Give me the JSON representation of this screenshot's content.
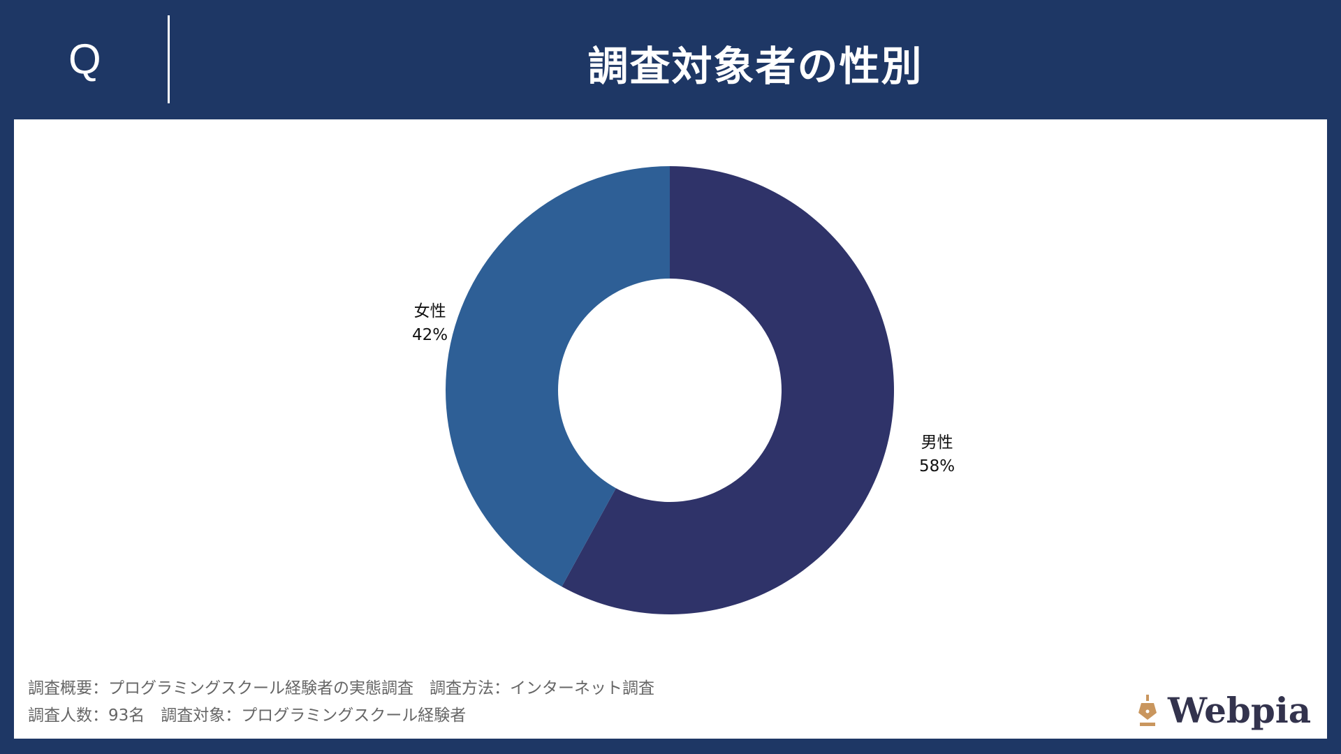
{
  "header": {
    "q_label": "Q",
    "title": "調査対象者の性別"
  },
  "colors": {
    "background": "#1e3765",
    "male": "#2f3369",
    "female": "#2e5f96"
  },
  "chart_data": {
    "type": "pie",
    "subtype": "donut",
    "title": "調査対象者の性別",
    "categories": [
      "男性",
      "女性"
    ],
    "values": [
      58,
      42
    ],
    "labels": [
      "58%",
      "42%"
    ],
    "colors": [
      "#2f3369",
      "#2e5f96"
    ]
  },
  "footer": {
    "line1": "調査概要：プログラミングスクール経験者の実態調査　調査方法：インターネット調査",
    "line2": "調査人数：93名　調査対象：プログラミングスクール経験者"
  },
  "logo": {
    "text": "Webpia",
    "icon": "pen-nib-icon"
  }
}
